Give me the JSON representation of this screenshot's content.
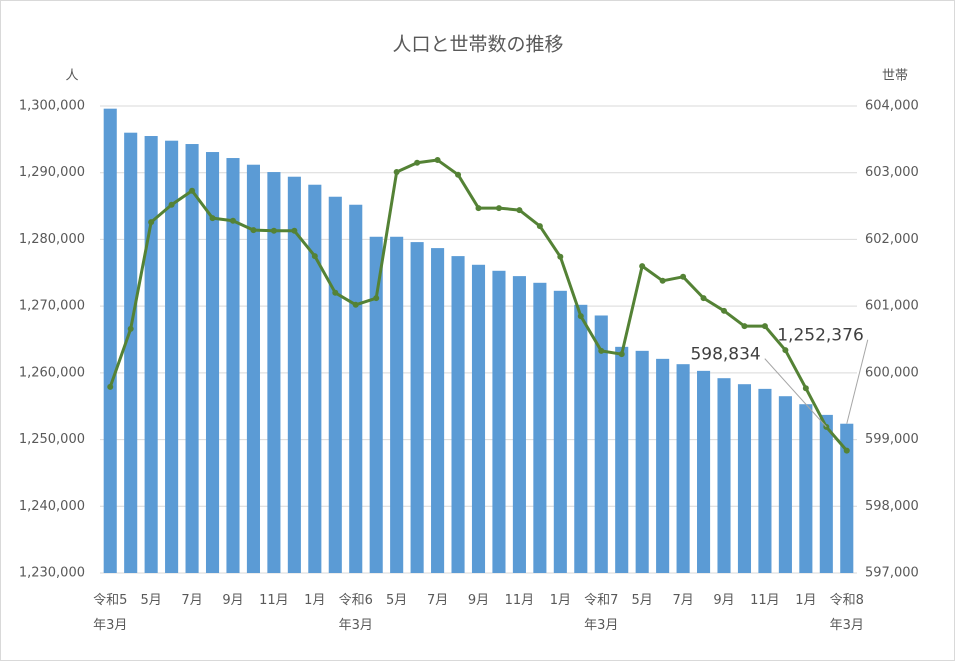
{
  "chart_data": {
    "type": "combo",
    "title": "人口と世帯数の推移",
    "y_label": "人",
    "y2_label": "世帯",
    "categories": [
      "令和5\n年3月",
      null,
      "5月",
      null,
      "7月",
      null,
      "9月",
      null,
      "11月",
      null,
      "1月",
      null,
      "令和6\n年3月",
      null,
      "5月",
      null,
      "7月",
      null,
      "9月",
      null,
      "11月",
      null,
      "1月",
      null,
      "令和7\n年3月",
      null,
      "5月",
      null,
      "7月",
      null,
      "9月",
      null,
      "11月",
      null,
      "1月",
      null,
      "令和8\n年3月"
    ],
    "series": [
      {
        "type": "bar",
        "color": "#5b9bd5",
        "values": [
          1299600,
          1296000,
          1295500,
          1294800,
          1294300,
          1293100,
          1292200,
          1291200,
          1290100,
          1289400,
          1288200,
          1286400,
          1285200,
          1280400,
          1280400,
          1279600,
          1278700,
          1277500,
          1276200,
          1275300,
          1274500,
          1273500,
          1272300,
          1270200,
          1268600,
          1263900,
          1263300,
          1262100,
          1261300,
          1260300,
          1259200,
          1258300,
          1257600,
          1256500,
          1255300,
          1253700,
          1252376
        ],
        "value_labels": [
          null,
          null,
          null,
          null,
          null,
          null,
          null,
          null,
          null,
          null,
          null,
          null,
          null,
          null,
          null,
          null,
          null,
          null,
          null,
          null,
          null,
          null,
          null,
          null,
          null,
          null,
          null,
          null,
          null,
          null,
          null,
          null,
          null,
          null,
          null,
          null,
          "1,252,376"
        ]
      },
      {
        "type": "line",
        "axis": "y2",
        "color": "#548235",
        "values": [
          599790,
          600660,
          602260,
          602520,
          602730,
          602320,
          602280,
          602140,
          602130,
          602130,
          601750,
          601200,
          601020,
          601120,
          603010,
          603150,
          603190,
          602970,
          602470,
          602470,
          602440,
          602200,
          601740,
          600850,
          600330,
          600280,
          601600,
          601380,
          601440,
          601120,
          600930,
          600700,
          600700,
          600340,
          599770,
          599190,
          598834
        ],
        "value_labels": [
          null,
          null,
          null,
          null,
          null,
          null,
          null,
          null,
          null,
          null,
          null,
          null,
          null,
          null,
          null,
          null,
          null,
          null,
          null,
          null,
          null,
          null,
          null,
          null,
          null,
          null,
          null,
          null,
          null,
          null,
          null,
          null,
          null,
          null,
          null,
          null,
          "598,834"
        ]
      }
    ],
    "ylim": [
      1230000,
      1300000
    ],
    "yticks": [
      {
        "value": 1230000,
        "label": "1,230,000"
      },
      {
        "value": 1240000,
        "label": "1,240,000"
      },
      {
        "value": 1250000,
        "label": "1,250,000"
      },
      {
        "value": 1260000,
        "label": "1,260,000"
      },
      {
        "value": 1270000,
        "label": "1,270,000"
      },
      {
        "value": 1280000,
        "label": "1,280,000"
      },
      {
        "value": 1290000,
        "label": "1,290,000"
      },
      {
        "value": 1300000,
        "label": "1,300,000"
      }
    ],
    "y2lim": [
      597000,
      604000
    ],
    "y2ticks": [
      {
        "value": 597000,
        "label": "597,000"
      },
      {
        "value": 598000,
        "label": "598,000"
      },
      {
        "value": 599000,
        "label": "599,000"
      },
      {
        "value": 600000,
        "label": "600,000"
      },
      {
        "value": 601000,
        "label": "601,000"
      },
      {
        "value": 602000,
        "label": "602,000"
      },
      {
        "value": 603000,
        "label": "603,000"
      },
      {
        "value": 604000,
        "label": "604,000"
      }
    ],
    "grid": true
  }
}
